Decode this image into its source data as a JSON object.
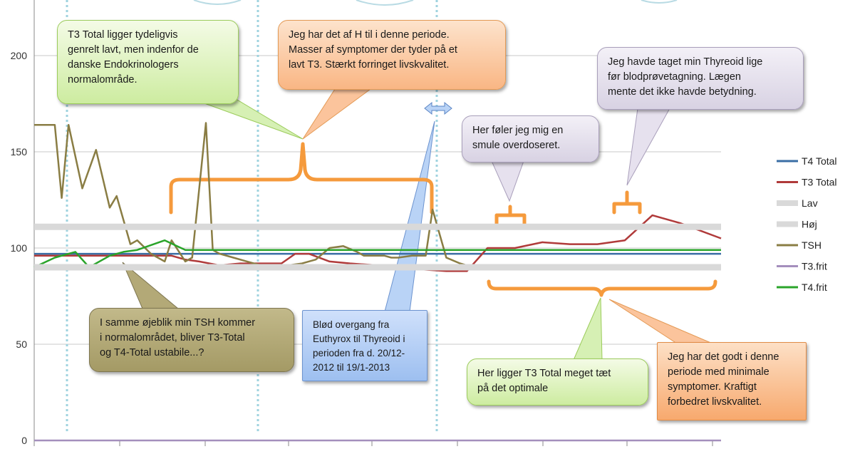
{
  "chart_data": {
    "type": "line",
    "y_ticks": [
      0,
      50,
      100,
      150,
      200
    ],
    "ylim": [
      0,
      220
    ],
    "xlim": [
      0,
      100
    ],
    "grid": "horizontal",
    "legend_position": "right",
    "series": [
      {
        "name": "T4 Total",
        "color": "#3a6ea5",
        "x": [
          0,
          4,
          8,
          12,
          16,
          20,
          24,
          28,
          30,
          32,
          34,
          36,
          38,
          40,
          43,
          46,
          48,
          50,
          52,
          54,
          56,
          60,
          64,
          68,
          72,
          74,
          76,
          78,
          80,
          84,
          88,
          92,
          96,
          100
        ],
        "y": [
          97,
          97,
          97,
          97,
          97,
          97,
          97,
          97,
          97,
          97,
          97,
          97,
          97,
          97,
          97,
          97,
          97,
          97,
          97,
          97,
          97,
          97,
          97,
          97,
          97,
          97,
          97,
          97,
          97,
          97,
          97,
          97,
          97,
          97
        ]
      },
      {
        "name": "T3 Total",
        "color": "#b03a3a",
        "x": [
          0,
          5,
          10,
          15,
          18,
          20,
          22,
          24,
          27,
          30,
          33,
          36,
          38,
          40,
          43,
          46,
          50,
          53,
          56,
          60,
          63,
          66,
          70,
          74,
          78,
          82,
          86,
          90,
          94,
          100
        ],
        "y": [
          96,
          96,
          96,
          96,
          96,
          96,
          94,
          93,
          91,
          92,
          92,
          92,
          97,
          97,
          93,
          92,
          91,
          90,
          89,
          88,
          88,
          100,
          100,
          103,
          102,
          102,
          104,
          117,
          113,
          105
        ]
      },
      {
        "name": "TSH",
        "color": "#8a7d44",
        "x": [
          0,
          1,
          3,
          4,
          5,
          7,
          9,
          11,
          12,
          14,
          15,
          17,
          19,
          20,
          22,
          23,
          25,
          26,
          27,
          29,
          31,
          33,
          35,
          37,
          39,
          41,
          43,
          45,
          47,
          48,
          50,
          51,
          52,
          53,
          55,
          56,
          57,
          58,
          60,
          62,
          63,
          64,
          65,
          66,
          67,
          68,
          70,
          72,
          74,
          76,
          78,
          80,
          82,
          84,
          86,
          88,
          90,
          92,
          94,
          96,
          98,
          100
        ],
        "y": [
          164,
          164,
          164,
          126,
          164,
          131,
          151,
          121,
          127,
          102,
          104,
          97,
          93,
          104,
          93,
          95,
          165,
          99,
          97,
          95,
          93,
          91,
          90,
          91,
          92,
          94,
          100,
          101,
          98,
          96,
          96,
          96,
          95,
          95,
          96,
          96,
          96,
          120,
          95,
          92,
          91,
          90,
          89,
          89,
          89,
          89,
          89,
          89,
          89,
          89,
          89,
          89,
          89,
          89,
          89,
          89,
          89,
          89,
          89,
          89,
          89,
          89
        ]
      },
      {
        "name": "T3.frit",
        "color": "#a48fbd",
        "x": [
          0,
          8,
          16,
          24,
          32,
          40,
          48,
          52,
          56,
          60,
          62,
          63,
          64,
          65,
          66,
          68,
          70,
          74,
          78,
          82,
          86,
          90,
          94,
          98,
          100
        ],
        "y": [
          0,
          0,
          0,
          0,
          0,
          0,
          0,
          0,
          0,
          0,
          0,
          0,
          0,
          0,
          0,
          0,
          0,
          0,
          0,
          0,
          0,
          0,
          0,
          0,
          0
        ]
      },
      {
        "name": "T4.frit",
        "color": "#2aa42a",
        "x": [
          0,
          3,
          5,
          6,
          8,
          11,
          13,
          15,
          19,
          22,
          25,
          30,
          35,
          40,
          45,
          50,
          55,
          60,
          63,
          65,
          66,
          70,
          74,
          78,
          82,
          86,
          90,
          94,
          100
        ],
        "y": [
          90,
          95,
          97,
          98,
          90,
          96,
          98,
          99,
          104,
          99,
          99,
          99,
          99,
          99,
          99,
          99,
          99,
          99,
          99,
          99,
          99,
          99,
          99,
          99,
          99,
          99,
          99,
          99,
          99
        ]
      },
      {
        "name": "Lav",
        "color": "#d9d9d9",
        "x": [
          0,
          10,
          20,
          30,
          40,
          50,
          60,
          70,
          80,
          90,
          100
        ],
        "y": [
          90,
          90,
          90,
          90,
          90,
          90,
          90,
          90,
          90,
          90,
          90
        ]
      },
      {
        "name": "Høj",
        "color": "#d9d9d9",
        "x": [
          0,
          10,
          20,
          30,
          40,
          50,
          60,
          70,
          80,
          90,
          100
        ],
        "y": [
          111,
          111,
          111,
          111,
          111,
          111,
          111,
          111,
          111,
          111,
          111
        ]
      }
    ],
    "annotations": {
      "green_top": "T3 Total ligger tydeligvis\ngenrelt lavt, men indenfor de\ndanske Endokrinologers\nnormalområde.",
      "orange_top": "Jeg har det af H til i denne periode.\nMasser af symptomer der tyder på et\nlavt T3. Stærkt forringet livskvalitet.",
      "lav_mid": "Her føler jeg mig en\nsmule overdoseret.",
      "lav_right": "Jeg havde taget min Thyreoid lige\nfør blodprøvetagning. Lægen\nmente det ikke havde betydning.",
      "olive_left": "I samme øjeblik min TSH kommer\ni normalområdet, bliver T3-Total\nog T4-Total ustabile...?",
      "blue_mid": "Blød overgang fra\nEuthyrox til Thyreoid i\nperioden fra d. 20/12-\n2012 til 19/1-2013",
      "green_bottom": "Her ligger T3 Total meget tæt\npå det optimale",
      "orange_bottom": "Jeg har det godt i denne\nperiode med minimale\nsymptomer. Kraftigt\nforbedret livskvalitet."
    }
  }
}
